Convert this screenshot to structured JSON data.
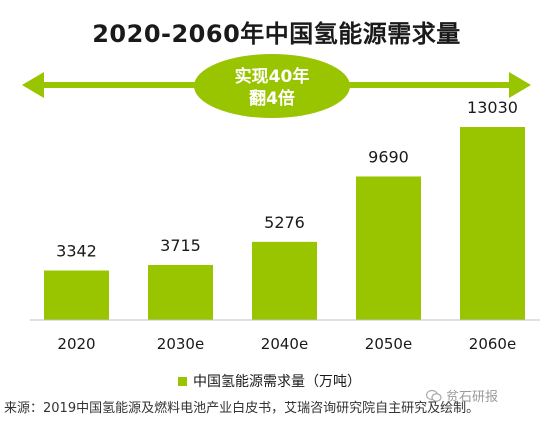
{
  "colors": {
    "bar": "#99c400",
    "arrow": "#99c400",
    "badge": "#99c400",
    "axis": "#bfbfbf"
  },
  "annotation": {
    "line1": "实现40年",
    "line2": "翻4倍"
  },
  "legend": {
    "label": "中国氢能源需求量（万吨）"
  },
  "source": "来源：2019中国氢能源及燃料电池产业白皮书，艾瑞咨询研究院自主研究及绘制。",
  "watermark": {
    "text": "贫石研报",
    "icon": "wechat-icon"
  },
  "chart_data": {
    "type": "bar",
    "title": "2020-2060年中国氢能源需求量",
    "categories": [
      "2020",
      "2030e",
      "2040e",
      "2050e",
      "2060e"
    ],
    "series": [
      {
        "name": "中国氢能源需求量（万吨）",
        "values": [
          3342,
          3715,
          5276,
          9690,
          13030
        ]
      }
    ],
    "data_labels": [
      "3342",
      "3715",
      "5276",
      "9690",
      "13030"
    ],
    "ylim": [
      0,
      13030
    ],
    "grid": false,
    "legend_position": "bottom"
  }
}
